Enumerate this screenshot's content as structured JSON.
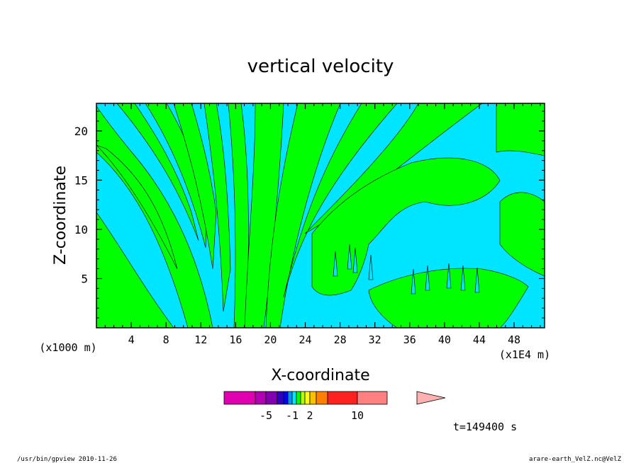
{
  "chart_data": {
    "type": "heatmap",
    "title": "vertical velocity",
    "xlabel": "X-coordinate",
    "ylabel": "Z-coordinate",
    "x_unit_left": "(x1000 m)",
    "x_unit_right": "(x1E4 m)",
    "xlim": [
      0,
      51.5
    ],
    "ylim": [
      0,
      22.8
    ],
    "x_ticks": [
      "4",
      "8",
      "12",
      "16",
      "20",
      "24",
      "28",
      "32",
      "36",
      "40",
      "44",
      "48"
    ],
    "y_ticks": [
      "5",
      "10",
      "15",
      "20"
    ],
    "grid": false,
    "fill_colors": {
      "positive": "#00ff00",
      "negative": "#00e5ff"
    },
    "colorbar": {
      "colors": [
        "#e000b0",
        "#b000b0",
        "#8000b0",
        "#3000c0",
        "#0000ff",
        "#0090ff",
        "#00e5ff",
        "#00ff00",
        "#b0ff00",
        "#ffff00",
        "#ffc000",
        "#ff8000",
        "#ff2020",
        "#ff8080",
        "#ffb0b0"
      ],
      "labels": [
        "-5",
        "-1",
        "2",
        "10"
      ]
    },
    "time_label": "t=149400 s"
  },
  "footer": {
    "left": "/usr/bin/gpview   2010-11-26",
    "right": "arare-earth_VelZ.nc@VelZ"
  }
}
